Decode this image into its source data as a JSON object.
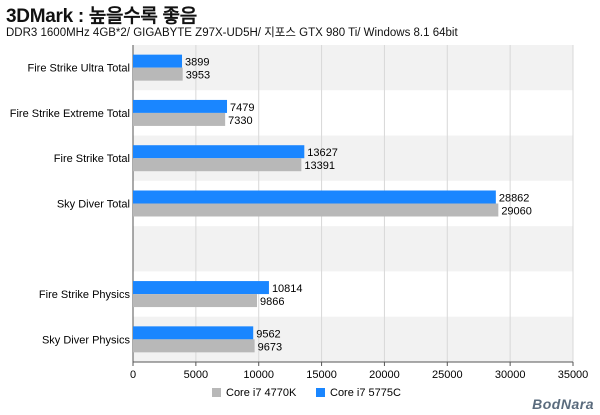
{
  "title": "3DMark : 높을수록 좋음",
  "subtitle": "DDR3 1600MHz 4GB*2/ GIGABYTE Z97X-UD5H/ 지포스 GTX 980 Ti/ Windows 8.1 64bit",
  "logo_text": "BodNara",
  "chart_data": {
    "type": "bar",
    "orientation": "horizontal",
    "categories": [
      "Fire Strike Ultra Total",
      "Fire Strike Extreme Total",
      "Fire Strike Total",
      "Sky Diver Total",
      "",
      "Fire Strike Physics",
      "Sky Diver Physics"
    ],
    "series": [
      {
        "name": "Core i7 5775C",
        "color": "#1a86ff",
        "values": [
          3899,
          7479,
          13627,
          28862,
          null,
          10814,
          9562
        ]
      },
      {
        "name": "Core i7 4770K",
        "color": "#b8b8b8",
        "values": [
          3953,
          7330,
          13391,
          29060,
          null,
          9866,
          9673
        ]
      }
    ],
    "xlim": [
      0,
      35000
    ],
    "xticks": [
      0,
      5000,
      10000,
      15000,
      20000,
      25000,
      30000,
      35000
    ],
    "legend_order": [
      "Core i7 4770K",
      "Core i7 5775C"
    ],
    "legend_position": "bottom",
    "grid": "vertical",
    "band_colors": [
      "#f2f2f2",
      "#ffffff"
    ]
  }
}
